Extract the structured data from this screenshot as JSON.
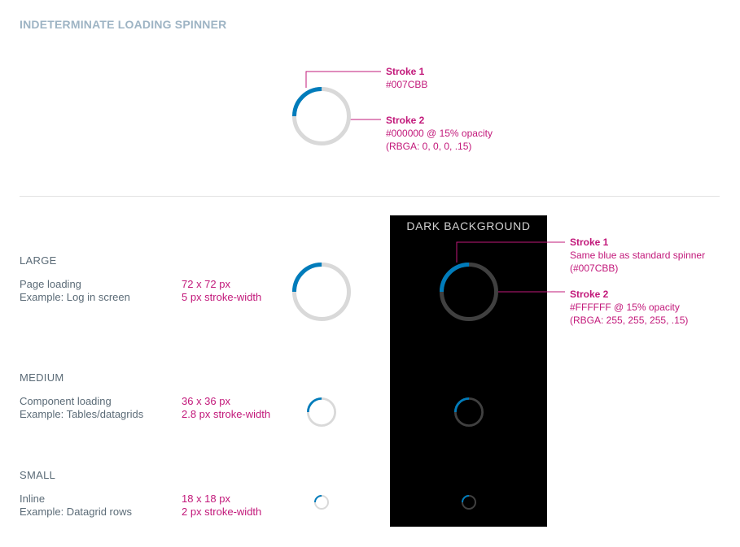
{
  "page_title": "INDETERMINATE LOADING SPINNER",
  "top_annotations": {
    "stroke1_title": "Stroke 1",
    "stroke1_text": "#007CBB",
    "stroke2_title": "Stroke 2",
    "stroke2_line1": "#000000 @ 15% opacity",
    "stroke2_line2": "(RBGA: 0, 0, 0, .15)"
  },
  "sizes": {
    "large": {
      "heading": "LARGE",
      "desc_line1": "Page loading",
      "desc_line2": "Example: Log in screen",
      "spec_line1": "72 x 72 px",
      "spec_line2": "5 px stroke-width"
    },
    "medium": {
      "heading": "MEDIUM",
      "desc_line1": "Component loading",
      "desc_line2": "Example: Tables/datagrids",
      "spec_line1": "36 x 36 px",
      "spec_line2": "2.8 px stroke-width"
    },
    "small": {
      "heading": "SMALL",
      "desc_line1": "Inline",
      "desc_line2": "Example: Datagrid rows",
      "spec_line1": "18 x 18 px",
      "spec_line2": "2 px stroke-width"
    }
  },
  "dark_panel": {
    "title": "DARK  BACKGROUND"
  },
  "dark_annotations": {
    "stroke1_title": "Stroke 1",
    "stroke1_line1": "Same blue as standard spinner",
    "stroke1_line2": "(#007CBB)",
    "stroke2_title": "Stroke 2",
    "stroke2_line1": "#FFFFFF @ 15% opacity",
    "stroke2_line2": "(RBGA: 255, 255, 255, .15)"
  },
  "colors": {
    "stroke1": "#007CBB",
    "stroke2_light": "#d9d9d9",
    "stroke2_dark": "#404040",
    "annotation": "#c2187a",
    "title": "#9eb4c4",
    "text": "#5b6b77",
    "dark_bg": "#000000"
  },
  "spinner_arc_fraction": 0.25
}
